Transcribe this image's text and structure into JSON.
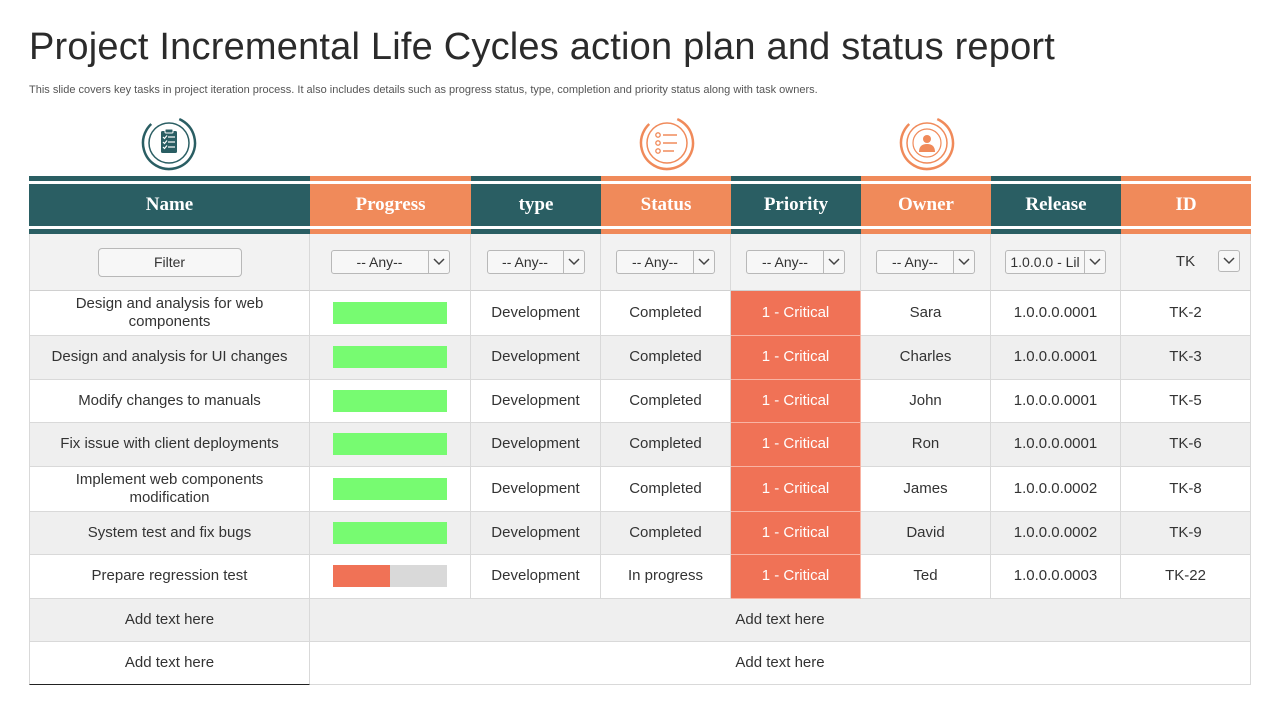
{
  "title": "Project Incremental Life Cycles action plan and status report",
  "subtitle": "This slide covers key tasks in project iteration process. It also includes details such as progress status, type, completion and priority status along with task owners.",
  "colors": {
    "dark": "#2a5e63",
    "orange": "#f08a5a",
    "critical": "#f07256",
    "progress_done": "#77fb71",
    "progress_partial": "#f07256"
  },
  "icons": [
    "clipboard-checklist-icon",
    "checklist-icon",
    "user-profile-icon"
  ],
  "headers": [
    "Name",
    "Progress",
    "type",
    "Status",
    "Priority",
    "Owner",
    "Release",
    "ID"
  ],
  "filters": {
    "filter_label": "Filter",
    "type": "-- Any--",
    "status": "-- Any--",
    "priority": "-- Any--",
    "owner": "-- Any--",
    "release": "1.0.0.0 - Lil",
    "id": "TK"
  },
  "rows": [
    {
      "name": "Design and analysis for web components",
      "progress": 1.0,
      "type": "Development",
      "status": "Completed",
      "priority": "1 - Critical",
      "owner": "Sara",
      "release": "1.0.0.0.0001",
      "id": "TK-2"
    },
    {
      "name": "Design and analysis for UI changes",
      "progress": 1.0,
      "type": "Development",
      "status": "Completed",
      "priority": "1 - Critical",
      "owner": "Charles",
      "release": "1.0.0.0.0001",
      "id": "TK-3"
    },
    {
      "name": "Modify  changes to manuals",
      "progress": 1.0,
      "type": "Development",
      "status": "Completed",
      "priority": "1 - Critical",
      "owner": "John",
      "release": "1.0.0.0.0001",
      "id": "TK-5"
    },
    {
      "name": "Fix issue with client deployments",
      "progress": 1.0,
      "type": "Development",
      "status": "Completed",
      "priority": "1 - Critical",
      "owner": "Ron",
      "release": "1.0.0.0.0001",
      "id": "TK-6"
    },
    {
      "name": "Implement web components modification",
      "progress": 1.0,
      "type": "Development",
      "status": "Completed",
      "priority": "1 - Critical",
      "owner": "James",
      "release": "1.0.0.0.0002",
      "id": "TK-8"
    },
    {
      "name": "System test and fix bugs",
      "progress": 1.0,
      "type": "Development",
      "status": "Completed",
      "priority": "1 - Critical",
      "owner": "David",
      "release": "1.0.0.0.0002",
      "id": "TK-9"
    },
    {
      "name": "Prepare regression test",
      "progress": 0.5,
      "type": "Development",
      "status": "In progress",
      "priority": "1 - Critical",
      "owner": "Ted",
      "release": "1.0.0.0.0003",
      "id": "TK-22"
    }
  ],
  "footer_rows": [
    {
      "left": "Add text here",
      "right": "Add text here"
    },
    {
      "left": "Add text here",
      "right": "Add text here"
    }
  ]
}
